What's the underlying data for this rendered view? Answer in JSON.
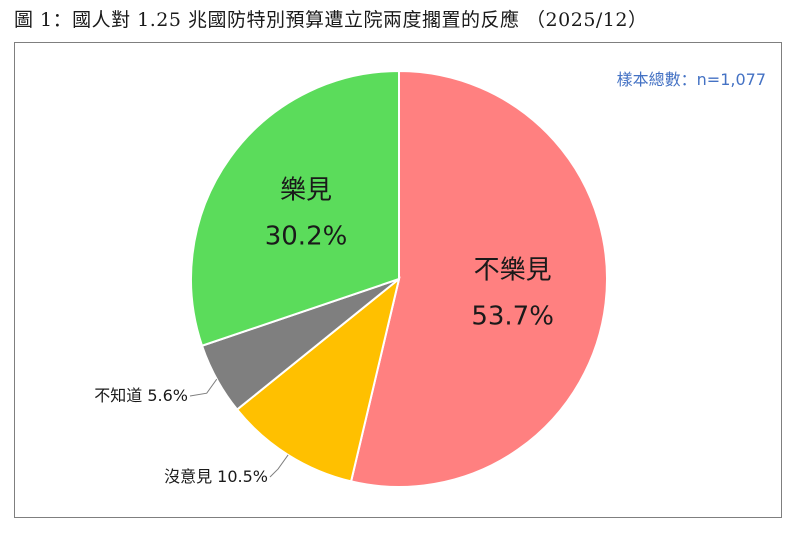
{
  "header": {
    "title": "圖 1：國人對 1.25 兆國防特別預算遭立院兩度擱置的反應 （2025/12）"
  },
  "note": {
    "sample_size": "樣本總數：n=1,077"
  },
  "colors": {
    "不樂見": "#ff8080",
    "沒意見": "#ffc000",
    "不知道": "#7f7f7f",
    "樂見": "#5bdc5b"
  },
  "chart_data": {
    "type": "pie",
    "title": "圖 1：國人對 1.25 兆國防特別預算遭立院兩度擱置的反應 （2025/12）",
    "start_angle": "12 o'clock",
    "direction": "clockwise",
    "slices": [
      {
        "label": "不樂見",
        "value": 53.7,
        "value_label": "53.7%",
        "color": "#ff8080",
        "label_position": "inside"
      },
      {
        "label": "沒意見",
        "value": 10.5,
        "value_label": "10.5%",
        "color": "#ffc000",
        "label_position": "outside"
      },
      {
        "label": "不知道",
        "value": 5.6,
        "value_label": "5.6%",
        "color": "#7f7f7f",
        "label_position": "outside"
      },
      {
        "label": "樂見",
        "value": 30.2,
        "value_label": "30.2%",
        "color": "#5bdc5b",
        "label_position": "inside"
      }
    ]
  }
}
